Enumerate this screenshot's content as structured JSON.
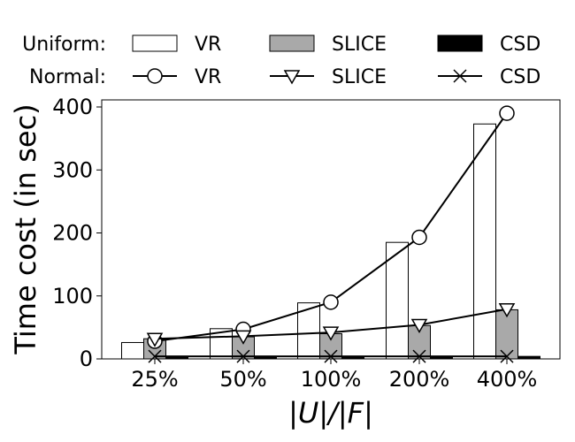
{
  "chart_data": {
    "type": "bar",
    "title": "",
    "xlabel": "|U|/|F|",
    "ylabel": "Time cost (in sec)",
    "ylim": [
      0,
      410
    ],
    "yticks": [
      0,
      100,
      200,
      300,
      400
    ],
    "categories": [
      "25%",
      "50%",
      "100%",
      "200%",
      "400%"
    ],
    "legend": {
      "group_labels": [
        "Uniform:",
        "Normal:"
      ],
      "entries": [
        {
          "group": "Uniform:",
          "label": "VR",
          "marker": "white-bar"
        },
        {
          "group": "Uniform:",
          "label": "SLICE",
          "marker": "gray-bar"
        },
        {
          "group": "Uniform:",
          "label": "CSD",
          "marker": "black-bar"
        },
        {
          "group": "Normal:",
          "label": "VR",
          "marker": "circle-line"
        },
        {
          "group": "Normal:",
          "label": "SLICE",
          "marker": "triangle-line"
        },
        {
          "group": "Normal:",
          "label": "CSD",
          "marker": "x-line"
        }
      ]
    },
    "bar_series": [
      {
        "name": "Uniform VR",
        "color": "#ffffff",
        "values": [
          26,
          48,
          89,
          185,
          373
        ]
      },
      {
        "name": "Uniform SLICE",
        "color": "#a9a9a9",
        "values": [
          32,
          35,
          40,
          53,
          78
        ]
      },
      {
        "name": "Uniform CSD",
        "color": "#000000",
        "values": [
          4,
          4,
          4,
          4,
          4
        ]
      }
    ],
    "line_series": [
      {
        "name": "Normal VR",
        "marker": "circle",
        "values": [
          28,
          47,
          90,
          193,
          390
        ]
      },
      {
        "name": "Normal SLICE",
        "marker": "triangle",
        "values": [
          32,
          36,
          42,
          54,
          79
        ]
      },
      {
        "name": "Normal CSD",
        "marker": "x",
        "values": [
          4,
          4,
          4,
          4,
          4
        ]
      }
    ]
  }
}
